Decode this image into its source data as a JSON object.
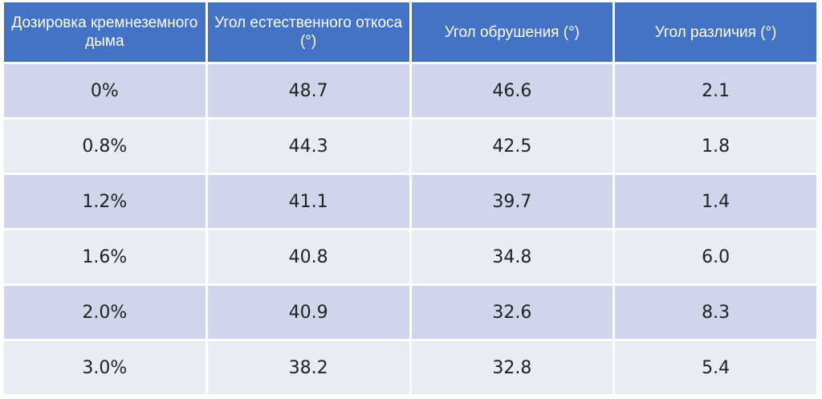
{
  "table": {
    "headers": [
      "Дозировка кремнеземного дыма",
      "Угол естественного откоса (°)",
      "Угол обрушения (°)",
      "Угол различия (°)"
    ],
    "rows": [
      [
        "0%",
        "48.7",
        "46.6",
        "2.1"
      ],
      [
        "0.8%",
        "44.3",
        "42.5",
        "1.8"
      ],
      [
        "1.2%",
        "41.1",
        "39.7",
        "1.4"
      ],
      [
        "1.6%",
        "40.8",
        "34.8",
        "6.0"
      ],
      [
        "2.0%",
        "40.9",
        "32.6",
        "8.3"
      ],
      [
        "3.0%",
        "38.2",
        "32.8",
        "5.4"
      ]
    ]
  }
}
